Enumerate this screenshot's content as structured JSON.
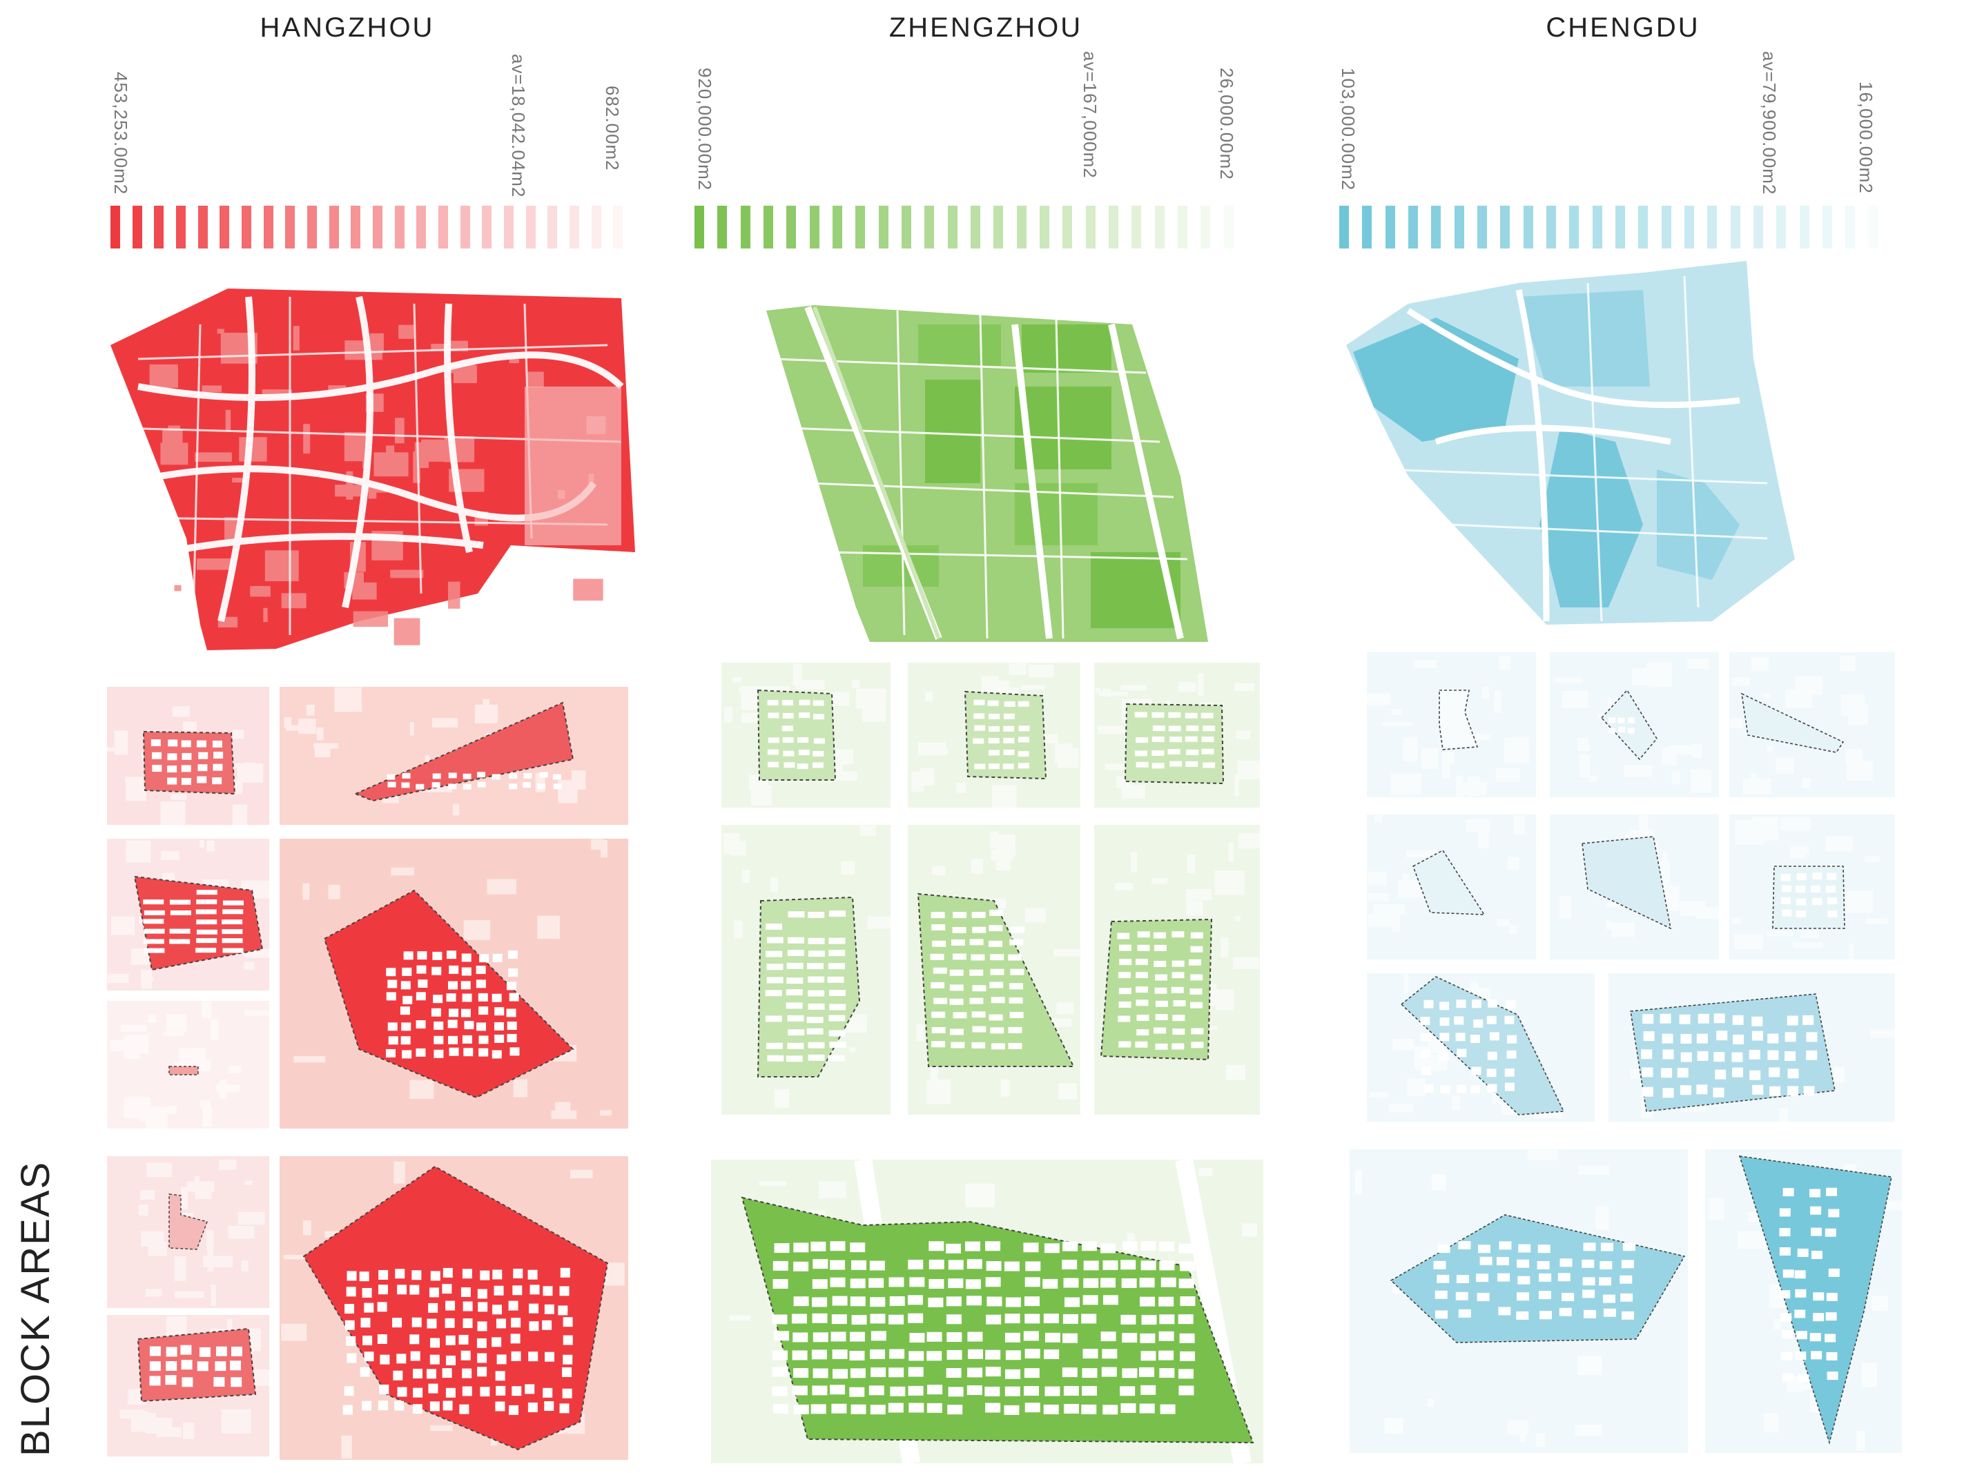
{
  "side_title": "BLOCK AREAS",
  "cities": [
    {
      "name": "HANGZHOU",
      "color": "#ee3a3f",
      "scale": {
        "max": "453,253.00m2",
        "avg": "av=18,042.04m2",
        "min": "682.00m2"
      }
    },
    {
      "name": "ZHENGZHOU",
      "color": "#78c04b",
      "scale": {
        "max": "920,000.00m2",
        "avg": "av=167,000m2",
        "min": "26,000.00m2"
      }
    },
    {
      "name": "CHENGDU",
      "color": "#6fc6d9",
      "scale": {
        "max": "103,000.00m2",
        "avg": "av=79,900.00m2",
        "min": "16,000.00m2"
      }
    }
  ]
}
